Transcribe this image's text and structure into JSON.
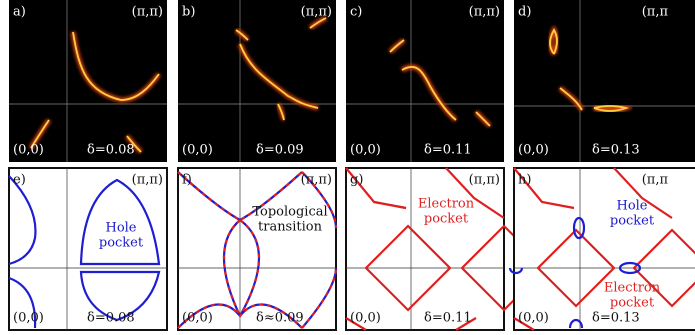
{
  "panels": [
    {
      "label": "a)",
      "corner": "(π,π)",
      "origin": "(0,0)",
      "delta": "δ=0.08"
    },
    {
      "label": "b)",
      "corner": "(π,π)",
      "origin": "(0,0)",
      "delta": "δ=0.09"
    },
    {
      "label": "c)",
      "corner": "(π,π)",
      "origin": "(0,0)",
      "delta": "δ=0.11"
    },
    {
      "label": "d)",
      "corner": "(π,π",
      "origin": "(0,0)",
      "delta": "δ=0.13"
    },
    {
      "label": "e)",
      "corner": "(π,π)",
      "origin": "(0,0)",
      "delta": "δ=0.08",
      "notes": [
        {
          "lines": [
            "Hole",
            "pocket"
          ],
          "color": "#1a1acc"
        }
      ]
    },
    {
      "label": "f)",
      "corner": "(π,π)",
      "origin": "(0,0)",
      "delta": "δ≈0.09",
      "notes": [
        {
          "lines": [
            "Topological",
            "transition"
          ],
          "color": "#111111"
        }
      ]
    },
    {
      "label": "g)",
      "corner": "(π,π)",
      "origin": "(0,0)",
      "delta": "δ=0.11",
      "notes": [
        {
          "lines": [
            "Electron",
            "pocket"
          ],
          "color": "#dd2222"
        }
      ]
    },
    {
      "label": "h)",
      "corner": "(π,π",
      "origin": "(0,0)",
      "delta": "δ=0.13",
      "notes": [
        {
          "lines": [
            "Hole",
            "pocket"
          ],
          "color": "#1a1acc"
        },
        {
          "lines": [
            "Electron",
            "pocket"
          ],
          "color": "#dd2222"
        }
      ]
    }
  ]
}
